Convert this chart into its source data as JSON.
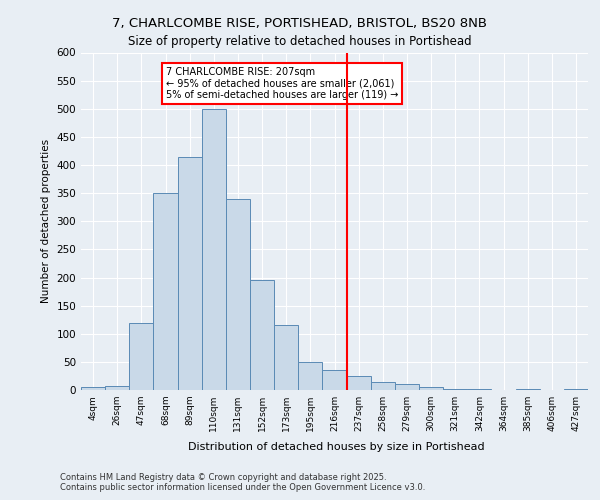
{
  "title_line1": "7, CHARLCOMBE RISE, PORTISHEAD, BRISTOL, BS20 8NB",
  "title_line2": "Size of property relative to detached houses in Portishead",
  "xlabel": "Distribution of detached houses by size in Portishead",
  "ylabel": "Number of detached properties",
  "footer_line1": "Contains HM Land Registry data © Crown copyright and database right 2025.",
  "footer_line2": "Contains public sector information licensed under the Open Government Licence v3.0.",
  "bin_labels": [
    "4sqm",
    "26sqm",
    "47sqm",
    "68sqm",
    "89sqm",
    "110sqm",
    "131sqm",
    "152sqm",
    "173sqm",
    "195sqm",
    "216sqm",
    "237sqm",
    "258sqm",
    "279sqm",
    "300sqm",
    "321sqm",
    "342sqm",
    "364sqm",
    "385sqm",
    "406sqm",
    "427sqm"
  ],
  "bar_values": [
    5,
    8,
    120,
    350,
    415,
    500,
    340,
    195,
    115,
    50,
    35,
    25,
    15,
    10,
    5,
    2,
    1,
    0,
    1,
    0,
    1
  ],
  "bar_color": "#c9d9e8",
  "bar_edge_color": "#5a8ab5",
  "background_color": "#e8eef4",
  "grid_color": "#ffffff",
  "vline_x": 10.5,
  "vline_color": "red",
  "annotation_text": "7 CHARLCOMBE RISE: 207sqm\n← 95% of detached houses are smaller (2,061)\n5% of semi-detached houses are larger (119) →",
  "annotation_box_color": "white",
  "annotation_box_edge": "red",
  "ylim": [
    0,
    600
  ],
  "yticks": [
    0,
    50,
    100,
    150,
    200,
    250,
    300,
    350,
    400,
    450,
    500,
    550,
    600
  ]
}
